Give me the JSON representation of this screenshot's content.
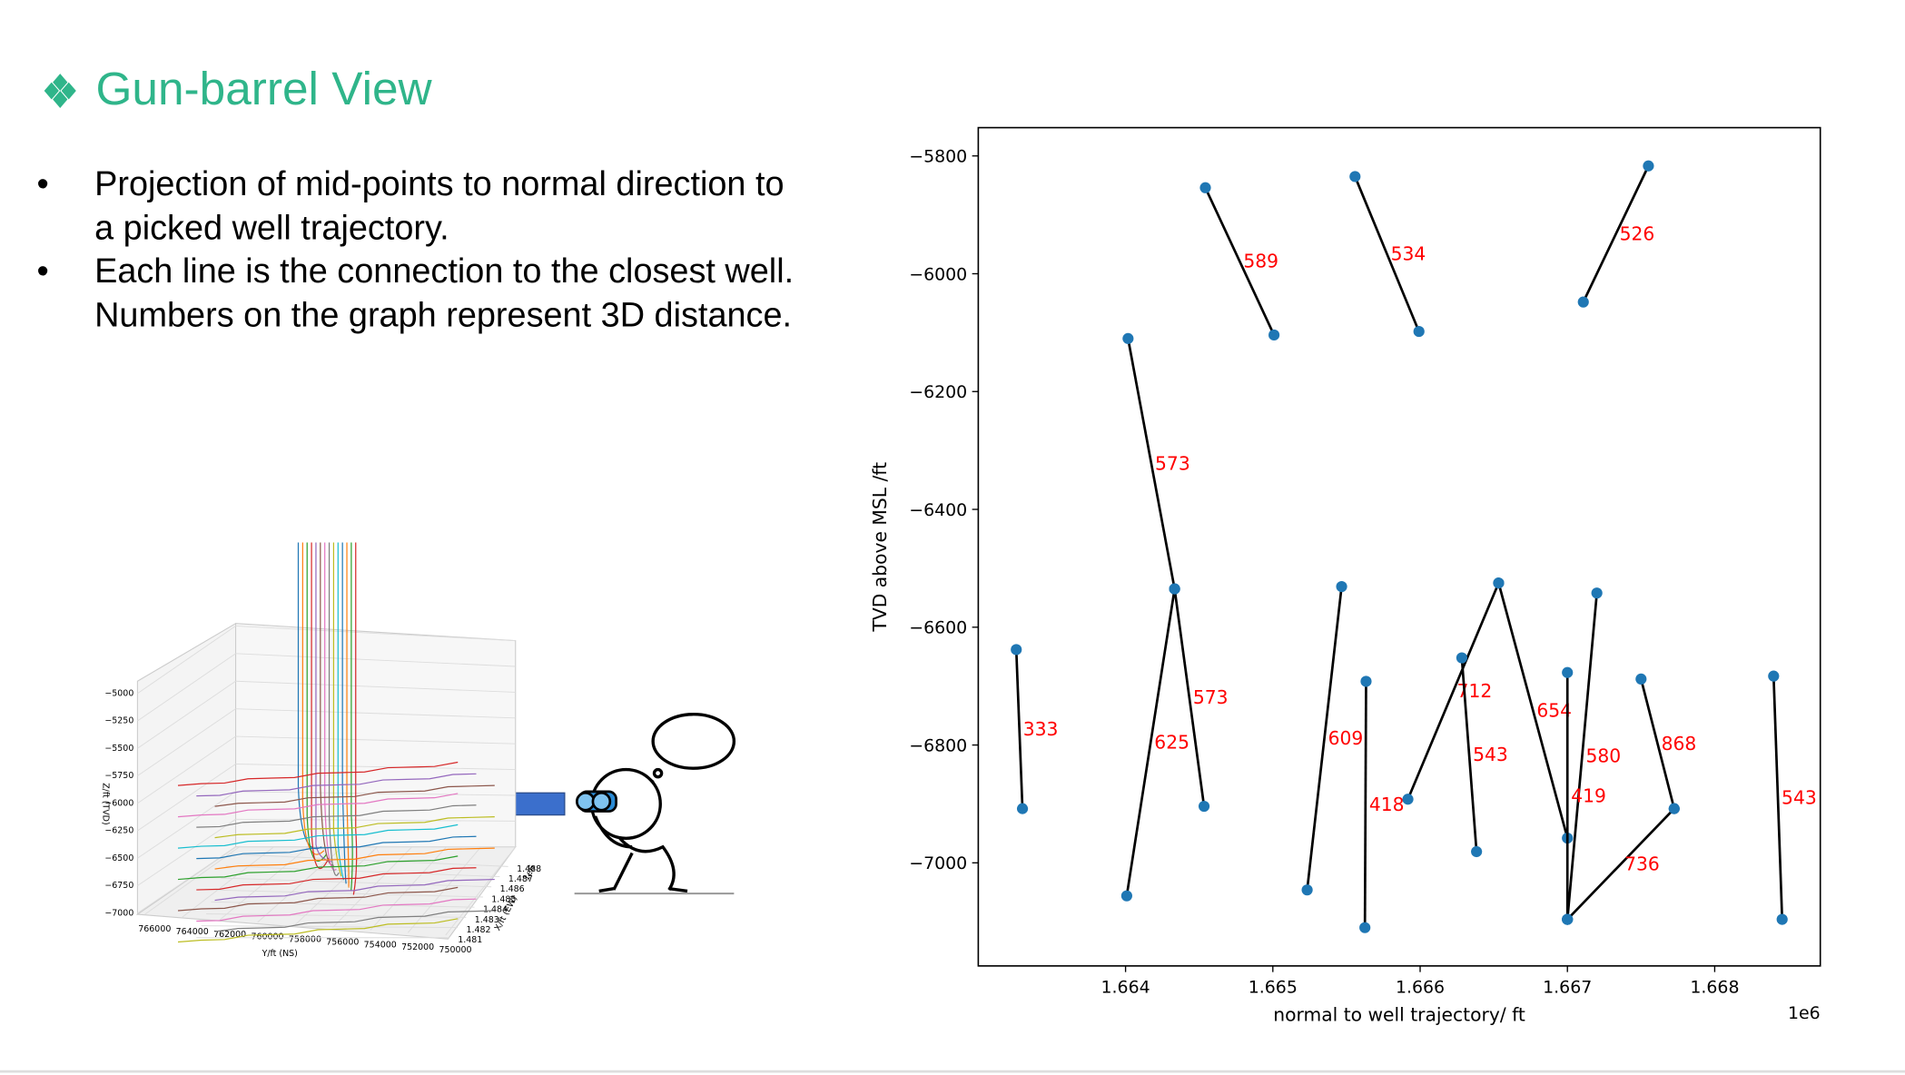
{
  "header": {
    "title": "Gun-barrel View"
  },
  "bullets": [
    "Projection of mid-points to normal direction to a picked well trajectory.",
    "Each line is the connection to the closest well. Numbers on the graph represent 3D distance."
  ],
  "chart_data": [
    {
      "type": "segments",
      "xlabel": "normal to well trajectory/ ft",
      "ylabel": "TVD above MSL /ft",
      "x_multiplier": "1e6",
      "point_color": "#1f77b4",
      "line_color": "#000000",
      "label_color": "#ff0000",
      "xlim": [
        1.663,
        1.668717
      ],
      "ylim": [
        -7175,
        -5752
      ],
      "xticks": [
        1.664,
        1.665,
        1.666,
        1.667,
        1.668
      ],
      "yticks": [
        {
          "value": -5800,
          "label": "−5800"
        },
        {
          "value": -6000,
          "label": "−6000"
        },
        {
          "value": -6200,
          "label": "−6200"
        },
        {
          "value": -6400,
          "label": "−6400"
        },
        {
          "value": -6600,
          "label": "−6600"
        },
        {
          "value": -6800,
          "label": "−6800"
        },
        {
          "value": -7000,
          "label": "−7000"
        }
      ],
      "segments": [
        {
          "x": [
            1.664542,
            1.665008
          ],
          "y": [
            -5854,
            -6104
          ],
          "distance": 589
        },
        {
          "x": [
            1.665558,
            1.665992
          ],
          "y": [
            -5835,
            -6098
          ],
          "distance": 534
        },
        {
          "x": [
            1.66755,
            1.667108
          ],
          "y": [
            -5817,
            -6048
          ],
          "distance": 526
        },
        {
          "x": [
            1.664017,
            1.664333
          ],
          "y": [
            -6110,
            -6535
          ],
          "distance": 573
        },
        {
          "x": [
            1.664333,
            1.664533
          ],
          "y": [
            -6535,
            -6904
          ],
          "distance": 573
        },
        {
          "x": [
            1.664333,
            1.664008
          ],
          "y": [
            -6535,
            -7056
          ],
          "distance": 625
        },
        {
          "x": [
            1.663258,
            1.6633
          ],
          "y": [
            -6638,
            -6908
          ],
          "distance": 333
        },
        {
          "x": [
            1.665467,
            1.665233
          ],
          "y": [
            -6531,
            -7046
          ],
          "distance": 609
        },
        {
          "x": [
            1.665633,
            1.665625
          ],
          "y": [
            -6692,
            -7110
          ],
          "distance": 418
        },
        {
          "x": [
            1.665917,
            1.666533
          ],
          "y": [
            -6892,
            -6525
          ],
          "distance": 712
        },
        {
          "x": [
            1.666283,
            1.666383
          ],
          "y": [
            -6652,
            -6981
          ],
          "distance": 543
        },
        {
          "x": [
            1.666533,
            1.667
          ],
          "y": [
            -6525,
            -6958
          ],
          "distance": 654
        },
        {
          "x": [
            1.6672,
            1.667
          ],
          "y": [
            -6542,
            -7096
          ],
          "distance": 580
        },
        {
          "x": [
            1.667,
            1.667
          ],
          "y": [
            -6677,
            -7096
          ],
          "distance": 419
        },
        {
          "x": [
            1.6675,
            1.667725
          ],
          "y": [
            -6688,
            -6908
          ],
          "distance": 868
        },
        {
          "x": [
            1.6684,
            1.668458
          ],
          "y": [
            -6683,
            -7096
          ],
          "distance": 543
        },
        {
          "x": [
            1.667725,
            1.667
          ],
          "y": [
            -6908,
            -7096
          ],
          "distance": 736
        }
      ]
    },
    {
      "type": "3d",
      "zlabel": "Z/ft (TVD)",
      "ylabel": "Y/ft (NS)",
      "xlabel": "X/ft (EW)",
      "x_multiplier": "1e6",
      "zticks": [
        {
          "value": -5000,
          "label": "−5000"
        },
        {
          "value": -5250,
          "label": "−5250"
        },
        {
          "value": -5500,
          "label": "−5500"
        },
        {
          "value": -5750,
          "label": "−5750"
        },
        {
          "value": -6000,
          "label": "−6000"
        },
        {
          "value": -6250,
          "label": "−6250"
        },
        {
          "value": -6500,
          "label": "−6500"
        },
        {
          "value": -6750,
          "label": "−6750"
        },
        {
          "value": -7000,
          "label": "−7000"
        }
      ],
      "yticks": [
        766000,
        764000,
        762000,
        760000,
        758000,
        756000,
        754000,
        752000,
        750000
      ],
      "xticks": [
        1.488,
        1.487,
        1.486,
        1.485,
        1.484,
        1.483,
        1.482,
        1.481
      ]
    }
  ]
}
